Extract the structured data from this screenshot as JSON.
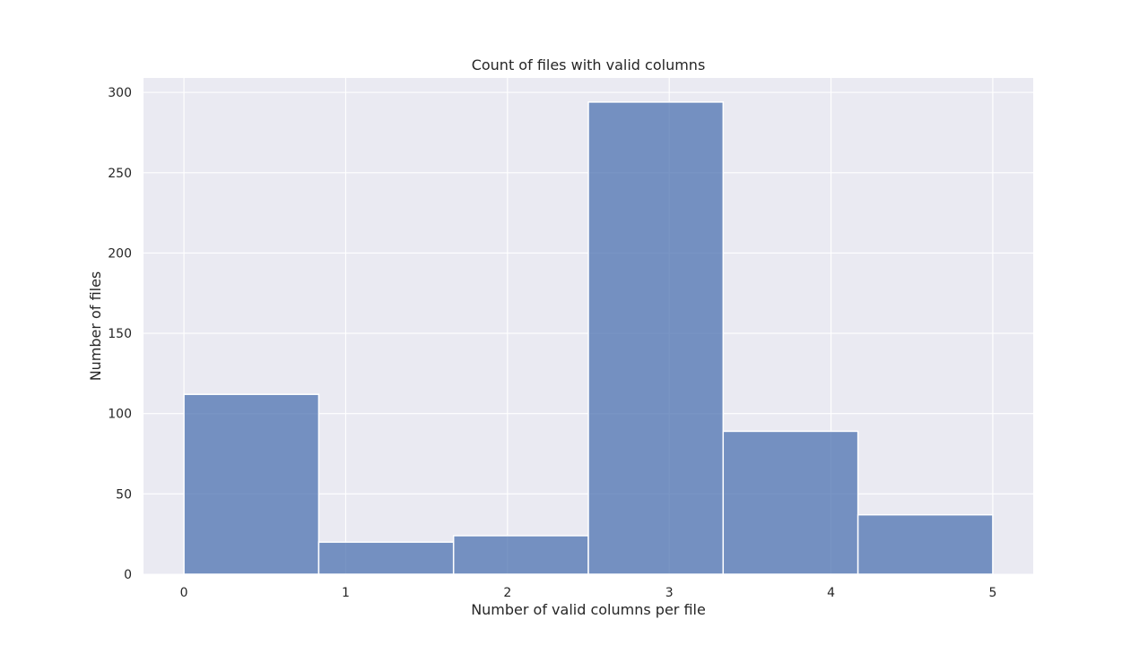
{
  "chart_data": {
    "type": "bar",
    "title": "Count of files with valid columns",
    "xlabel": "Number of valid columns per file",
    "ylabel": "Number of files",
    "xlim": [
      -0.25,
      5.25
    ],
    "ylim": [
      0,
      309
    ],
    "x_ticks": [
      "0",
      "1",
      "2",
      "3",
      "4",
      "5"
    ],
    "y_ticks": [
      "0",
      "50",
      "100",
      "150",
      "200",
      "250",
      "300"
    ],
    "bins": [
      {
        "start": 0.0,
        "end": 0.8333,
        "value": 112
      },
      {
        "start": 0.8333,
        "end": 1.6667,
        "value": 20
      },
      {
        "start": 1.6667,
        "end": 2.5,
        "value": 24
      },
      {
        "start": 2.5,
        "end": 3.3333,
        "value": 294
      },
      {
        "start": 3.3333,
        "end": 4.1667,
        "value": 89
      },
      {
        "start": 4.1667,
        "end": 5.0,
        "value": 37
      }
    ],
    "grid": true,
    "colors": {
      "background": "#eaeaf2",
      "bar_fill": "#4c72b0",
      "bar_edge": "#ffffff",
      "grid": "#ffffff"
    }
  }
}
